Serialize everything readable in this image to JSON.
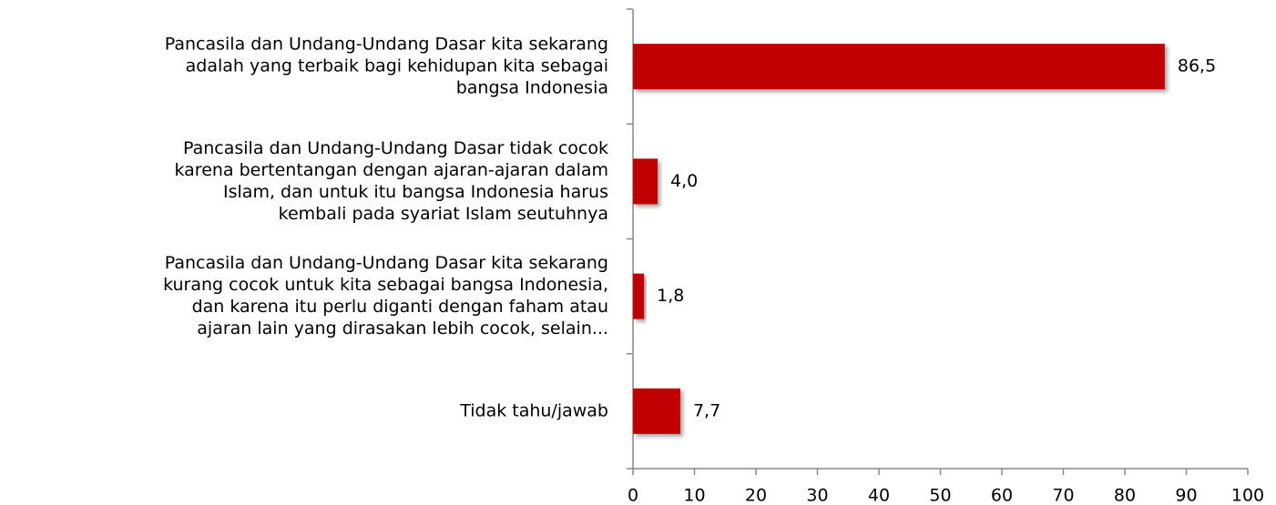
{
  "chart_data": {
    "type": "bar",
    "orientation": "horizontal",
    "categories": [
      [
        "Pancasila dan Undang-Undang Dasar kita sekarang",
        "adalah yang terbaik bagi kehidupan kita sebagai",
        "bangsa Indonesia"
      ],
      [
        "Pancasila dan Undang-Undang Dasar tidak cocok",
        "karena bertentangan dengan ajaran-ajaran dalam",
        "Islam, dan untuk itu bangsa Indonesia harus",
        "kembali pada syariat Islam seutuhnya"
      ],
      [
        "Pancasila dan Undang-Undang Dasar  kita sekarang",
        "kurang cocok untuk kita sebagai bangsa Indonesia,",
        "dan karena itu perlu diganti dengan faham atau",
        "ajaran lain yang dirasakan lebih cocok, selain..."
      ],
      [
        "Tidak tahu/jawab"
      ]
    ],
    "values": [
      86.5,
      4.0,
      1.8,
      7.7
    ],
    "value_labels": [
      "86,5",
      "4,0",
      "1,8",
      "7,7"
    ],
    "color": "#c00000",
    "xlim": [
      0,
      100
    ],
    "xticks": [
      0,
      10,
      20,
      30,
      40,
      50,
      60,
      70,
      80,
      90,
      100
    ]
  }
}
